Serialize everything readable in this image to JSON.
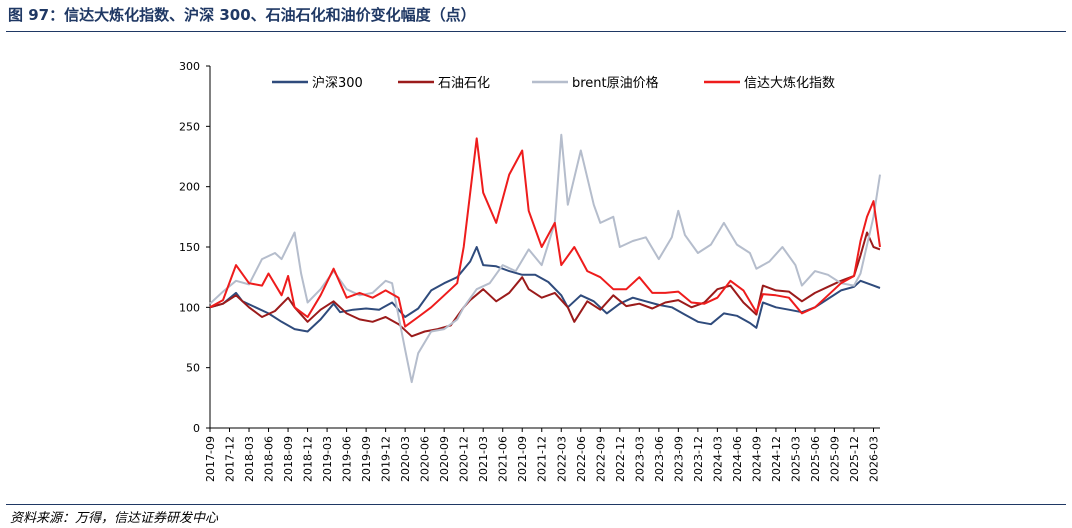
{
  "figure": {
    "title": "图 97：信达大炼化指数、沪深 300、石油石化和油价变化幅度（点）",
    "source": "资料来源：万得，信达证券研发中心"
  },
  "chart_data": {
    "type": "line",
    "title": "",
    "xlabel": "",
    "ylabel": "",
    "ylim": [
      0,
      300
    ],
    "yticks": [
      0,
      50,
      100,
      150,
      200,
      250,
      300
    ],
    "x_range": [
      "2017-09",
      "2026-04"
    ],
    "x_tick_labels": [
      "2017-09",
      "2017-12",
      "2018-03",
      "2018-06",
      "2018-09",
      "2018-12",
      "2019-03",
      "2019-06",
      "2019-09",
      "2019-12",
      "2020-03",
      "2020-06",
      "2020-09",
      "2020-12",
      "2021-03",
      "2021-06",
      "2021-09",
      "2021-12",
      "2022-03",
      "2022-06",
      "2022-09",
      "2022-12",
      "2023-03",
      "2023-06",
      "2023-09",
      "2023-12",
      "2024-03",
      "2024-06",
      "2024-09",
      "2024-12",
      "2025-03",
      "2025-06",
      "2025-09",
      "2025-12",
      "2026-03"
    ],
    "grid": false,
    "legend_position": "top",
    "series": [
      {
        "name": "沪深300",
        "color": "#2f4b7c",
        "points": [
          [
            "2017-09",
            100
          ],
          [
            "2017-11",
            103
          ],
          [
            "2018-01",
            112
          ],
          [
            "2018-02",
            105
          ],
          [
            "2018-04",
            100
          ],
          [
            "2018-06",
            95
          ],
          [
            "2018-08",
            88
          ],
          [
            "2018-10",
            82
          ],
          [
            "2018-12",
            80
          ],
          [
            "2019-02",
            90
          ],
          [
            "2019-04",
            103
          ],
          [
            "2019-05",
            96
          ],
          [
            "2019-07",
            98
          ],
          [
            "2019-09",
            99
          ],
          [
            "2019-11",
            98
          ],
          [
            "2020-01",
            104
          ],
          [
            "2020-03",
            92
          ],
          [
            "2020-05",
            99
          ],
          [
            "2020-07",
            114
          ],
          [
            "2020-09",
            120
          ],
          [
            "2020-11",
            125
          ],
          [
            "2021-01",
            138
          ],
          [
            "2021-02",
            150
          ],
          [
            "2021-03",
            135
          ],
          [
            "2021-05",
            134
          ],
          [
            "2021-07",
            130
          ],
          [
            "2021-09",
            127
          ],
          [
            "2021-11",
            127
          ],
          [
            "2022-01",
            121
          ],
          [
            "2022-03",
            110
          ],
          [
            "2022-04",
            100
          ],
          [
            "2022-06",
            110
          ],
          [
            "2022-08",
            105
          ],
          [
            "2022-10",
            95
          ],
          [
            "2022-12",
            103
          ],
          [
            "2023-02",
            108
          ],
          [
            "2023-04",
            105
          ],
          [
            "2023-06",
            102
          ],
          [
            "2023-08",
            100
          ],
          [
            "2023-10",
            94
          ],
          [
            "2023-12",
            88
          ],
          [
            "2024-02",
            86
          ],
          [
            "2024-04",
            95
          ],
          [
            "2024-06",
            93
          ],
          [
            "2024-08",
            87
          ],
          [
            "2024-09",
            83
          ],
          [
            "2024-10",
            104
          ],
          [
            "2024-12",
            100
          ],
          [
            "2025-02",
            98
          ],
          [
            "2025-04",
            96
          ],
          [
            "2025-06",
            100
          ],
          [
            "2025-08",
            107
          ],
          [
            "2025-10",
            114
          ],
          [
            "2025-12",
            117
          ],
          [
            "2026-01",
            122
          ],
          [
            "2026-03",
            118
          ],
          [
            "2026-04",
            116
          ]
        ]
      },
      {
        "name": "石油石化",
        "color": "#9b1b1b",
        "points": [
          [
            "2017-09",
            100
          ],
          [
            "2017-11",
            103
          ],
          [
            "2018-01",
            110
          ],
          [
            "2018-03",
            100
          ],
          [
            "2018-05",
            92
          ],
          [
            "2018-07",
            97
          ],
          [
            "2018-09",
            108
          ],
          [
            "2018-10",
            100
          ],
          [
            "2018-12",
            88
          ],
          [
            "2019-02",
            98
          ],
          [
            "2019-04",
            105
          ],
          [
            "2019-06",
            95
          ],
          [
            "2019-08",
            90
          ],
          [
            "2019-10",
            88
          ],
          [
            "2019-12",
            92
          ],
          [
            "2020-02",
            86
          ],
          [
            "2020-04",
            76
          ],
          [
            "2020-06",
            80
          ],
          [
            "2020-08",
            82
          ],
          [
            "2020-10",
            85
          ],
          [
            "2020-12",
            100
          ],
          [
            "2021-01",
            106
          ],
          [
            "2021-03",
            115
          ],
          [
            "2021-05",
            105
          ],
          [
            "2021-07",
            112
          ],
          [
            "2021-09",
            125
          ],
          [
            "2021-10",
            115
          ],
          [
            "2021-12",
            108
          ],
          [
            "2022-02",
            112
          ],
          [
            "2022-04",
            100
          ],
          [
            "2022-05",
            88
          ],
          [
            "2022-07",
            105
          ],
          [
            "2022-09",
            98
          ],
          [
            "2022-11",
            110
          ],
          [
            "2023-01",
            101
          ],
          [
            "2023-03",
            103
          ],
          [
            "2023-05",
            99
          ],
          [
            "2023-07",
            104
          ],
          [
            "2023-09",
            106
          ],
          [
            "2023-11",
            100
          ],
          [
            "2024-01",
            104
          ],
          [
            "2024-03",
            115
          ],
          [
            "2024-05",
            118
          ],
          [
            "2024-07",
            104
          ],
          [
            "2024-09",
            94
          ],
          [
            "2024-10",
            118
          ],
          [
            "2024-12",
            114
          ],
          [
            "2025-02",
            113
          ],
          [
            "2025-04",
            105
          ],
          [
            "2025-06",
            112
          ],
          [
            "2025-08",
            117
          ],
          [
            "2025-10",
            122
          ],
          [
            "2025-12",
            126
          ],
          [
            "2026-01",
            143
          ],
          [
            "2026-02",
            162
          ],
          [
            "2026-03",
            150
          ],
          [
            "2026-04",
            148
          ]
        ]
      },
      {
        "name": "brent原油价格",
        "color": "#b5bdcc",
        "points": [
          [
            "2017-09",
            103
          ],
          [
            "2017-11",
            113
          ],
          [
            "2018-01",
            122
          ],
          [
            "2018-03",
            119
          ],
          [
            "2018-05",
            140
          ],
          [
            "2018-07",
            145
          ],
          [
            "2018-08",
            140
          ],
          [
            "2018-10",
            162
          ],
          [
            "2018-11",
            128
          ],
          [
            "2018-12",
            104
          ],
          [
            "2019-02",
            115
          ],
          [
            "2019-04",
            130
          ],
          [
            "2019-06",
            115
          ],
          [
            "2019-08",
            110
          ],
          [
            "2019-10",
            112
          ],
          [
            "2019-12",
            122
          ],
          [
            "2020-01",
            120
          ],
          [
            "2020-03",
            65
          ],
          [
            "2020-04",
            38
          ],
          [
            "2020-05",
            62
          ],
          [
            "2020-07",
            80
          ],
          [
            "2020-09",
            82
          ],
          [
            "2020-11",
            90
          ],
          [
            "2020-12",
            100
          ],
          [
            "2021-02",
            115
          ],
          [
            "2021-04",
            120
          ],
          [
            "2021-06",
            135
          ],
          [
            "2021-08",
            130
          ],
          [
            "2021-10",
            148
          ],
          [
            "2021-12",
            135
          ],
          [
            "2022-02",
            170
          ],
          [
            "2022-03",
            243
          ],
          [
            "2022-04",
            185
          ],
          [
            "2022-06",
            230
          ],
          [
            "2022-08",
            185
          ],
          [
            "2022-09",
            170
          ],
          [
            "2022-11",
            175
          ],
          [
            "2022-12",
            150
          ],
          [
            "2023-02",
            155
          ],
          [
            "2023-04",
            158
          ],
          [
            "2023-06",
            140
          ],
          [
            "2023-08",
            158
          ],
          [
            "2023-09",
            180
          ],
          [
            "2023-10",
            160
          ],
          [
            "2023-12",
            145
          ],
          [
            "2024-02",
            152
          ],
          [
            "2024-04",
            170
          ],
          [
            "2024-06",
            152
          ],
          [
            "2024-08",
            145
          ],
          [
            "2024-09",
            132
          ],
          [
            "2024-11",
            138
          ],
          [
            "2025-01",
            150
          ],
          [
            "2025-03",
            135
          ],
          [
            "2025-04",
            118
          ],
          [
            "2025-06",
            130
          ],
          [
            "2025-08",
            127
          ],
          [
            "2025-10",
            120
          ],
          [
            "2025-12",
            118
          ],
          [
            "2026-01",
            128
          ],
          [
            "2026-03",
            175
          ],
          [
            "2026-04",
            210
          ]
        ]
      },
      {
        "name": "信达大炼化指数",
        "color": "#ee1c1c",
        "points": [
          [
            "2017-09",
            100
          ],
          [
            "2017-11",
            106
          ],
          [
            "2018-01",
            135
          ],
          [
            "2018-03",
            120
          ],
          [
            "2018-05",
            118
          ],
          [
            "2018-06",
            128
          ],
          [
            "2018-08",
            110
          ],
          [
            "2018-09",
            126
          ],
          [
            "2018-10",
            100
          ],
          [
            "2018-12",
            92
          ],
          [
            "2019-02",
            110
          ],
          [
            "2019-04",
            132
          ],
          [
            "2019-06",
            108
          ],
          [
            "2019-08",
            112
          ],
          [
            "2019-10",
            108
          ],
          [
            "2019-12",
            114
          ],
          [
            "2020-02",
            108
          ],
          [
            "2020-03",
            84
          ],
          [
            "2020-05",
            92
          ],
          [
            "2020-07",
            100
          ],
          [
            "2020-09",
            110
          ],
          [
            "2020-11",
            120
          ],
          [
            "2020-12",
            150
          ],
          [
            "2021-01",
            195
          ],
          [
            "2021-02",
            240
          ],
          [
            "2021-03",
            195
          ],
          [
            "2021-05",
            170
          ],
          [
            "2021-07",
            210
          ],
          [
            "2021-09",
            230
          ],
          [
            "2021-10",
            180
          ],
          [
            "2021-12",
            150
          ],
          [
            "2022-02",
            170
          ],
          [
            "2022-03",
            135
          ],
          [
            "2022-05",
            150
          ],
          [
            "2022-07",
            130
          ],
          [
            "2022-09",
            125
          ],
          [
            "2022-11",
            115
          ],
          [
            "2023-01",
            115
          ],
          [
            "2023-03",
            125
          ],
          [
            "2023-05",
            112
          ],
          [
            "2023-07",
            112
          ],
          [
            "2023-09",
            113
          ],
          [
            "2023-11",
            104
          ],
          [
            "2024-01",
            103
          ],
          [
            "2024-03",
            108
          ],
          [
            "2024-05",
            122
          ],
          [
            "2024-07",
            114
          ],
          [
            "2024-09",
            96
          ],
          [
            "2024-10",
            111
          ],
          [
            "2024-12",
            110
          ],
          [
            "2025-02",
            108
          ],
          [
            "2025-04",
            95
          ],
          [
            "2025-06",
            100
          ],
          [
            "2025-08",
            110
          ],
          [
            "2025-10",
            120
          ],
          [
            "2025-12",
            126
          ],
          [
            "2026-01",
            155
          ],
          [
            "2026-02",
            175
          ],
          [
            "2026-03",
            188
          ],
          [
            "2026-04",
            150
          ]
        ]
      }
    ]
  }
}
